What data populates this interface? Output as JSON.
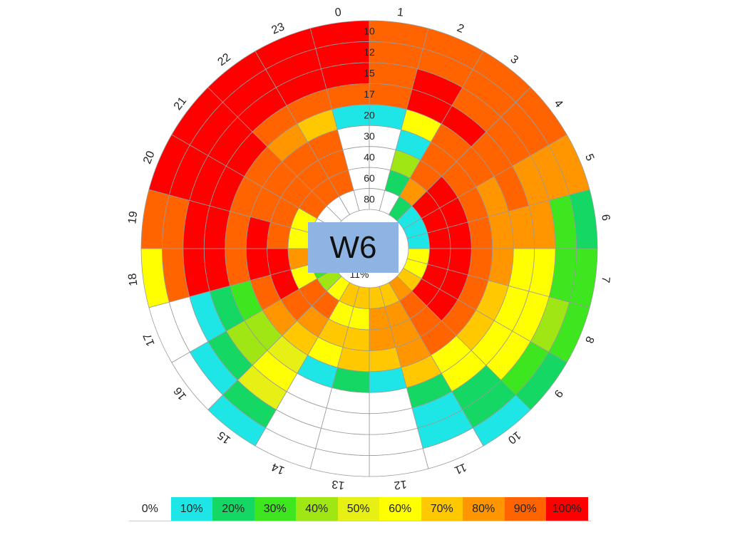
{
  "chart_data": {
    "type": "heatmap",
    "title": "W6",
    "hour_labels": [
      "0",
      "1",
      "2",
      "3",
      "4",
      "5",
      "6",
      "7",
      "8",
      "9",
      "10",
      "11",
      "12",
      "13",
      "14",
      "15",
      "16",
      "17",
      "18",
      "19",
      "20",
      "21",
      "22",
      "23"
    ],
    "ring_labels": [
      "10",
      "12",
      "15",
      "17",
      "20",
      "30",
      "40",
      "60",
      "80"
    ],
    "center_value_label": "11%",
    "legend": [
      {
        "label": "0%",
        "color": "#ffffff"
      },
      {
        "label": "10%",
        "color": "#1ee6e6"
      },
      {
        "label": "20%",
        "color": "#14d764"
      },
      {
        "label": "30%",
        "color": "#3de61e"
      },
      {
        "label": "40%",
        "color": "#a0e614"
      },
      {
        "label": "50%",
        "color": "#e6f014"
      },
      {
        "label": "60%",
        "color": "#ffff00"
      },
      {
        "label": "70%",
        "color": "#ffc800"
      },
      {
        "label": "80%",
        "color": "#ff9600"
      },
      {
        "label": "90%",
        "color": "#ff6400"
      },
      {
        "label": "100%",
        "color": "#ff0000"
      }
    ],
    "rings": [
      {
        "label": "10",
        "values": [
          100,
          90,
          90,
          90,
          90,
          80,
          20,
          30,
          30,
          20,
          10,
          0,
          0,
          0,
          0,
          10,
          0,
          0,
          60,
          90,
          100,
          100,
          100,
          100
        ]
      },
      {
        "label": "12",
        "values": [
          100,
          90,
          90,
          90,
          90,
          80,
          30,
          30,
          40,
          30,
          20,
          10,
          0,
          0,
          0,
          20,
          10,
          0,
          90,
          90,
          100,
          100,
          100,
          100
        ]
      },
      {
        "label": "15",
        "values": [
          100,
          90,
          100,
          90,
          90,
          80,
          80,
          60,
          60,
          60,
          20,
          10,
          0,
          0,
          0,
          50,
          20,
          10,
          100,
          100,
          100,
          100,
          100,
          100
        ]
      },
      {
        "label": "17",
        "values": [
          90,
          90,
          100,
          100,
          90,
          90,
          80,
          60,
          60,
          60,
          60,
          20,
          0,
          0,
          0,
          60,
          40,
          20,
          100,
          100,
          100,
          100,
          90,
          90
        ]
      },
      {
        "label": "20",
        "values": [
          10,
          10,
          60,
          90,
          90,
          80,
          80,
          80,
          70,
          70,
          60,
          70,
          10,
          20,
          10,
          50,
          40,
          30,
          90,
          90,
          90,
          90,
          80,
          70
        ]
      },
      {
        "label": "30",
        "values": [
          0,
          0,
          10,
          90,
          90,
          90,
          90,
          90,
          90,
          90,
          90,
          80,
          70,
          70,
          60,
          70,
          80,
          90,
          100,
          100,
          90,
          90,
          90,
          90
        ]
      },
      {
        "label": "40",
        "values": [
          0,
          0,
          40,
          90,
          100,
          100,
          100,
          100,
          100,
          100,
          90,
          80,
          80,
          70,
          70,
          80,
          90,
          100,
          100,
          90,
          90,
          90,
          90,
          90
        ]
      },
      {
        "label": "60",
        "values": [
          0,
          0,
          20,
          80,
          100,
          100,
          100,
          100,
          100,
          100,
          90,
          80,
          80,
          60,
          60,
          90,
          90,
          60,
          80,
          60,
          60,
          90,
          90,
          90
        ]
      },
      {
        "label": "80",
        "values": [
          0,
          0,
          0,
          20,
          10,
          10,
          10,
          60,
          60,
          70,
          80,
          70,
          70,
          70,
          70,
          60,
          40,
          30,
          10,
          0,
          0,
          0,
          0,
          0
        ]
      }
    ]
  }
}
